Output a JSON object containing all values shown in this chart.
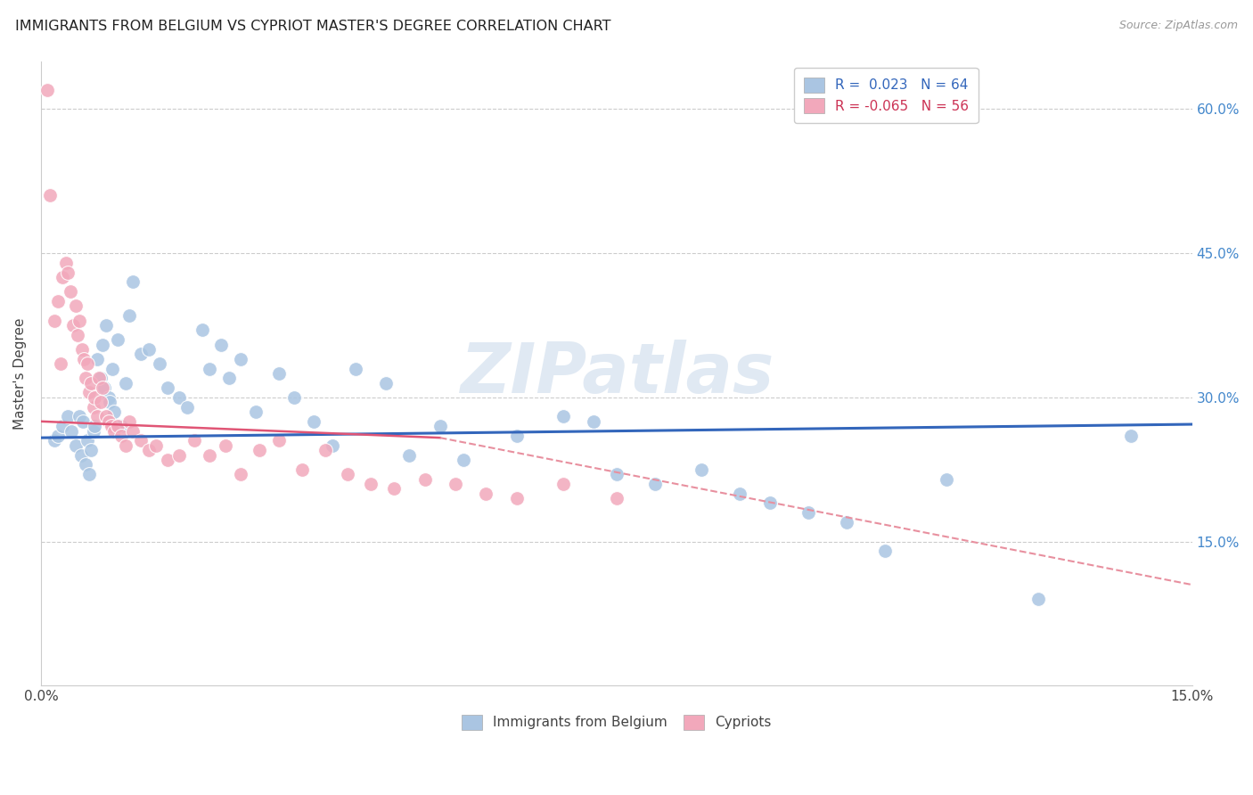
{
  "title": "IMMIGRANTS FROM BELGIUM VS CYPRIOT MASTER'S DEGREE CORRELATION CHART",
  "source": "Source: ZipAtlas.com",
  "ylabel": "Master's Degree",
  "xlim": [
    0.0,
    15.0
  ],
  "ylim": [
    0.0,
    65.0
  ],
  "yticks": [
    15.0,
    30.0,
    45.0,
    60.0
  ],
  "xtick_positions": [
    0.0,
    3.75,
    7.5,
    11.25,
    15.0
  ],
  "xtick_labels": [
    "0.0%",
    "",
    "",
    "",
    "15.0%"
  ],
  "ytick_labels_right": [
    "15.0%",
    "30.0%",
    "45.0%",
    "60.0%"
  ],
  "blue_R": 0.023,
  "blue_N": 64,
  "pink_R": -0.065,
  "pink_N": 56,
  "blue_color": "#aac5e2",
  "pink_color": "#f2a8bb",
  "blue_line_color": "#3366bb",
  "pink_line_solid_color": "#e05575",
  "pink_line_dash_color": "#e8909f",
  "legend_label_blue": "Immigrants from Belgium",
  "legend_label_pink": "Cypriots",
  "watermark": "ZIPatlas",
  "blue_x": [
    0.18,
    0.22,
    0.28,
    0.35,
    0.4,
    0.45,
    0.5,
    0.52,
    0.55,
    0.58,
    0.6,
    0.63,
    0.65,
    0.68,
    0.7,
    0.73,
    0.78,
    0.8,
    0.82,
    0.85,
    0.88,
    0.9,
    0.93,
    0.95,
    1.0,
    1.05,
    1.1,
    1.15,
    1.2,
    1.3,
    1.4,
    1.55,
    1.65,
    1.8,
    1.9,
    2.1,
    2.2,
    2.35,
    2.45,
    2.6,
    2.8,
    3.1,
    3.3,
    3.55,
    3.8,
    4.1,
    4.5,
    4.8,
    5.2,
    5.5,
    6.2,
    6.8,
    7.2,
    7.5,
    8.0,
    8.6,
    9.1,
    9.5,
    10.0,
    10.5,
    11.0,
    11.8,
    13.0,
    14.2
  ],
  "blue_y": [
    25.5,
    26.0,
    27.0,
    28.0,
    26.5,
    25.0,
    28.0,
    24.0,
    27.5,
    23.0,
    25.5,
    22.0,
    24.5,
    26.5,
    27.0,
    34.0,
    32.0,
    35.5,
    31.0,
    37.5,
    30.0,
    29.5,
    33.0,
    28.5,
    36.0,
    27.0,
    31.5,
    38.5,
    42.0,
    34.5,
    35.0,
    33.5,
    31.0,
    30.0,
    29.0,
    37.0,
    33.0,
    35.5,
    32.0,
    34.0,
    28.5,
    32.5,
    30.0,
    27.5,
    25.0,
    33.0,
    31.5,
    24.0,
    27.0,
    23.5,
    26.0,
    28.0,
    27.5,
    22.0,
    21.0,
    22.5,
    20.0,
    19.0,
    18.0,
    17.0,
    14.0,
    21.5,
    9.0,
    26.0
  ],
  "pink_x": [
    0.08,
    0.12,
    0.18,
    0.22,
    0.25,
    0.28,
    0.32,
    0.35,
    0.38,
    0.42,
    0.45,
    0.48,
    0.5,
    0.53,
    0.56,
    0.58,
    0.6,
    0.63,
    0.65,
    0.68,
    0.7,
    0.73,
    0.75,
    0.78,
    0.8,
    0.85,
    0.88,
    0.92,
    0.95,
    1.0,
    1.05,
    1.1,
    1.15,
    1.2,
    1.3,
    1.4,
    1.5,
    1.65,
    1.8,
    2.0,
    2.2,
    2.4,
    2.6,
    2.85,
    3.1,
    3.4,
    3.7,
    4.0,
    4.3,
    4.6,
    5.0,
    5.4,
    5.8,
    6.2,
    6.8,
    7.5
  ],
  "pink_y": [
    62.0,
    51.0,
    38.0,
    40.0,
    33.5,
    42.5,
    44.0,
    43.0,
    41.0,
    37.5,
    39.5,
    36.5,
    38.0,
    35.0,
    34.0,
    32.0,
    33.5,
    30.5,
    31.5,
    29.0,
    30.0,
    28.0,
    32.0,
    29.5,
    31.0,
    28.0,
    27.5,
    27.0,
    26.5,
    27.0,
    26.0,
    25.0,
    27.5,
    26.5,
    25.5,
    24.5,
    25.0,
    23.5,
    24.0,
    25.5,
    24.0,
    25.0,
    22.0,
    24.5,
    25.5,
    22.5,
    24.5,
    22.0,
    21.0,
    20.5,
    21.5,
    21.0,
    20.0,
    19.5,
    21.0,
    19.5
  ],
  "blue_reg_x0": 0.0,
  "blue_reg_y0": 25.8,
  "blue_reg_x1": 15.0,
  "blue_reg_y1": 27.2,
  "pink_solid_x0": 0.0,
  "pink_solid_y0": 27.5,
  "pink_solid_x1": 5.2,
  "pink_solid_y1": 25.8,
  "pink_dash_x0": 5.2,
  "pink_dash_y0": 25.8,
  "pink_dash_x1": 15.0,
  "pink_dash_y1": 10.5
}
